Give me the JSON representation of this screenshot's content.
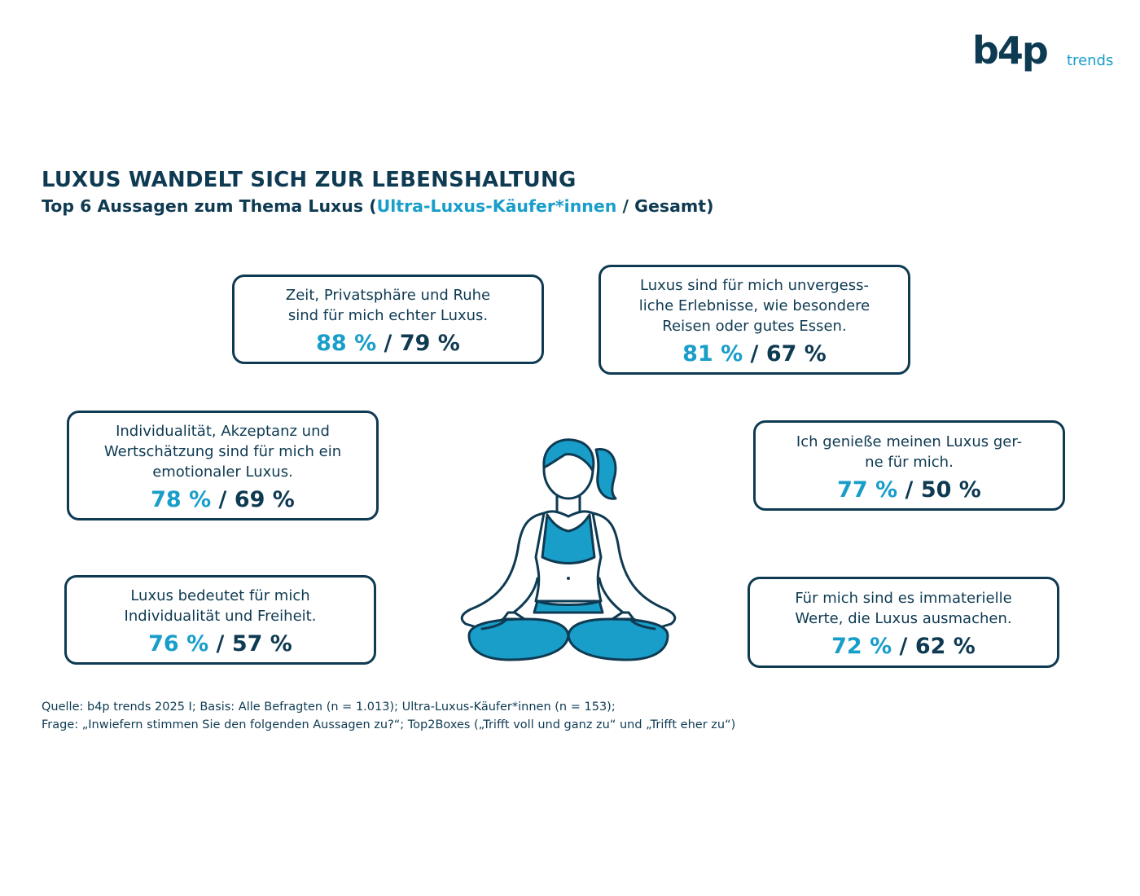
{
  "logo": {
    "brand": "b4p",
    "suffix": "trends"
  },
  "title": "LUXUS WANDELT SICH ZUR LEBENSHALTUNG",
  "subtitle": {
    "prefix": "Top 6 Aussagen zum Thema Luxus (",
    "highlight": "Ultra-Luxus-Käufer*innen",
    "suffix": " / Gesamt)"
  },
  "statements": [
    {
      "text": "Zeit, Privatsphäre und Ruhe\nsind für mich echter Luxus.",
      "ultra": "88 %",
      "total": "79 %"
    },
    {
      "text": "Luxus sind für mich unvergess-\nliche Erlebnisse, wie besondere\nReisen oder gutes Essen.",
      "ultra": "81 %",
      "total": "67 %"
    },
    {
      "text": "Individualität, Akzeptanz und\nWertschätzung sind für mich ein\nemotionaler Luxus.",
      "ultra": "78 %",
      "total": "69 %"
    },
    {
      "text": "Ich genieße meinen Luxus ger-\nne für mich.",
      "ultra": "77 %",
      "total": "50 %"
    },
    {
      "text": "Luxus bedeutet für mich\nIndividualität und Freiheit.",
      "ultra": "76 %",
      "total": "57 %"
    },
    {
      "text": "Für mich sind es immaterielle\nWerte, die Luxus ausmachen.",
      "ultra": "72 %",
      "total": "62 %"
    }
  ],
  "separator": " / ",
  "source": {
    "line1": "Quelle: b4p trends 2025 I; Basis: Alle Befragten (n = 1.013); Ultra-Luxus-Käufer*innen (n = 153);",
    "line2": "Frage: „Inwiefern stimmen Sie den folgenden Aussagen zu?“; Top2Boxes („Trifft voll und ganz zu“ und „Trifft eher zu“)"
  },
  "colors": {
    "navy": "#0e3a52",
    "accent": "#189ec9",
    "background": "#ffffff"
  },
  "icons": {
    "logo": "b4p-trends-logo",
    "figure": "meditating-woman-icon"
  }
}
